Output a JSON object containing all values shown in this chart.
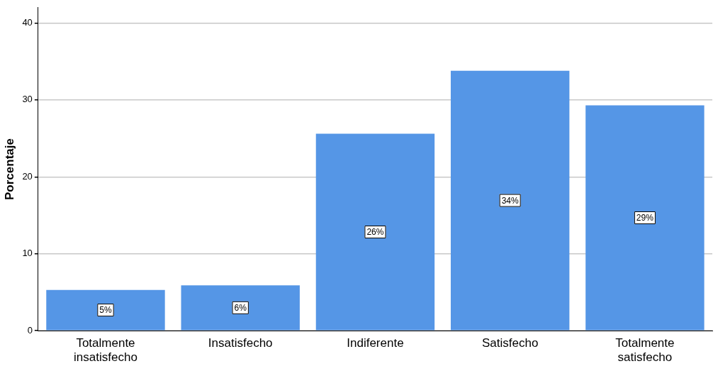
{
  "chart_data": {
    "type": "bar",
    "ylabel": "Porcentaje",
    "categories": [
      "Totalmente insatisfecho",
      "Insatisfecho",
      "Indiferente",
      "Satisfecho",
      "Totalmente satisfecho"
    ],
    "values": [
      5.3,
      5.9,
      25.6,
      33.8,
      29.3
    ],
    "value_labels": [
      "5%",
      "6%",
      "26%",
      "34%",
      "29%"
    ],
    "color": "#5596e6",
    "ylim": [
      0,
      42
    ],
    "yticks": [
      0,
      10,
      20,
      30,
      40
    ],
    "grid": "y",
    "legend": false
  }
}
